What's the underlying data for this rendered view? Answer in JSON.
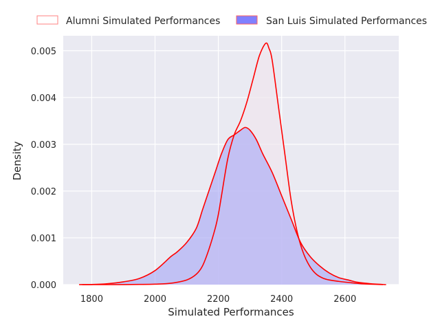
{
  "chart_data": {
    "type": "area",
    "title": "",
    "xlabel": "Simulated Performances",
    "ylabel": "Density",
    "xlim": [
      1710,
      2770
    ],
    "ylim": [
      0,
      0.00532
    ],
    "xticks": [
      1800,
      2000,
      2200,
      2400,
      2600
    ],
    "xtick_labels": [
      "1800",
      "2000",
      "2200",
      "2400",
      "2600"
    ],
    "yticks": [
      0,
      0.001,
      0.002,
      0.003,
      0.004,
      0.005
    ],
    "ytick_labels": [
      "0.000",
      "0.001",
      "0.002",
      "0.003",
      "0.004",
      "0.005"
    ],
    "grid": true,
    "legend_position": "top, above plot",
    "series": [
      {
        "name": "Alumni Simulated Performances",
        "fill_color": "#f0e6ee",
        "line_color": "#ff0000",
        "x": [
          1770,
          1800,
          1850,
          1900,
          1950,
          2000,
          2050,
          2100,
          2130,
          2150,
          2170,
          2190,
          2200,
          2210,
          2230,
          2250,
          2270,
          2290,
          2310,
          2330,
          2350,
          2360,
          2370,
          2390,
          2410,
          2430,
          2450,
          2470,
          2490,
          2510,
          2530,
          2550,
          2580,
          2620,
          2650,
          2680,
          2720
        ],
        "y": [
          0,
          0,
          1e-07,
          1e-06,
          4e-06,
          1e-05,
          3e-05,
          0.0001,
          0.00022,
          0.0004,
          0.00075,
          0.0012,
          0.0015,
          0.0019,
          0.0027,
          0.0032,
          0.0035,
          0.0039,
          0.0044,
          0.0049,
          0.00516,
          0.00505,
          0.0048,
          0.0038,
          0.0028,
          0.0018,
          0.0011,
          0.00065,
          0.00038,
          0.00022,
          0.00014,
          0.0001,
          7e-05,
          4e-05,
          2e-05,
          1e-05,
          0
        ]
      },
      {
        "name": "San Luis Simulated Performances",
        "fill_color": "#a8a8f5",
        "line_color": "#ff0000",
        "x": [
          1760,
          1800,
          1850,
          1900,
          1950,
          2000,
          2050,
          2070,
          2100,
          2130,
          2150,
          2170,
          2190,
          2210,
          2230,
          2250,
          2270,
          2285,
          2300,
          2320,
          2340,
          2370,
          2400,
          2430,
          2460,
          2490,
          2520,
          2550,
          2580,
          2610,
          2640,
          2680,
          2730
        ],
        "y": [
          0,
          3e-06,
          2e-05,
          6e-05,
          0.00013,
          0.0003,
          0.0006,
          0.0007,
          0.0009,
          0.0012,
          0.0016,
          0.002,
          0.0024,
          0.0028,
          0.0031,
          0.0032,
          0.0033,
          0.00336,
          0.0033,
          0.0031,
          0.0028,
          0.0024,
          0.0019,
          0.0014,
          0.0009,
          0.0006,
          0.0004,
          0.00025,
          0.00015,
          0.0001,
          5e-05,
          2e-05,
          0
        ]
      }
    ]
  }
}
